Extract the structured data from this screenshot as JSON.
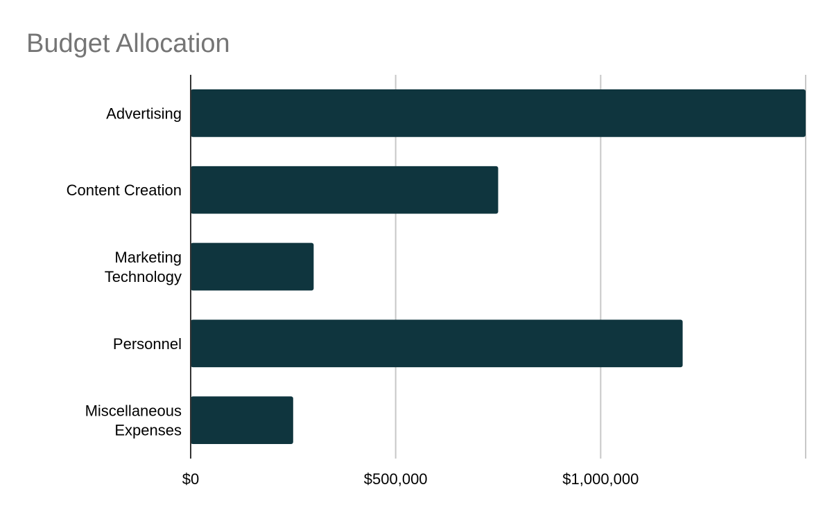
{
  "chart_data": {
    "type": "bar",
    "orientation": "horizontal",
    "title": "Budget Allocation",
    "categories": [
      [
        "Advertising"
      ],
      [
        "Content Creation"
      ],
      [
        "Marketing",
        "Technology"
      ],
      [
        "Personnel"
      ],
      [
        "Miscellaneous",
        "Expenses"
      ]
    ],
    "series": [
      {
        "values": [
          1500000,
          750000,
          300000,
          1200000,
          250000
        ],
        "color": "#0f353e"
      }
    ],
    "xlim": [
      0,
      1500000
    ],
    "xticks": [
      {
        "value": 0,
        "label": "$0"
      },
      {
        "value": 500000,
        "label": "$500,000"
      },
      {
        "value": 1000000,
        "label": "$1,000,000"
      }
    ],
    "grid": true,
    "legend": "none"
  }
}
